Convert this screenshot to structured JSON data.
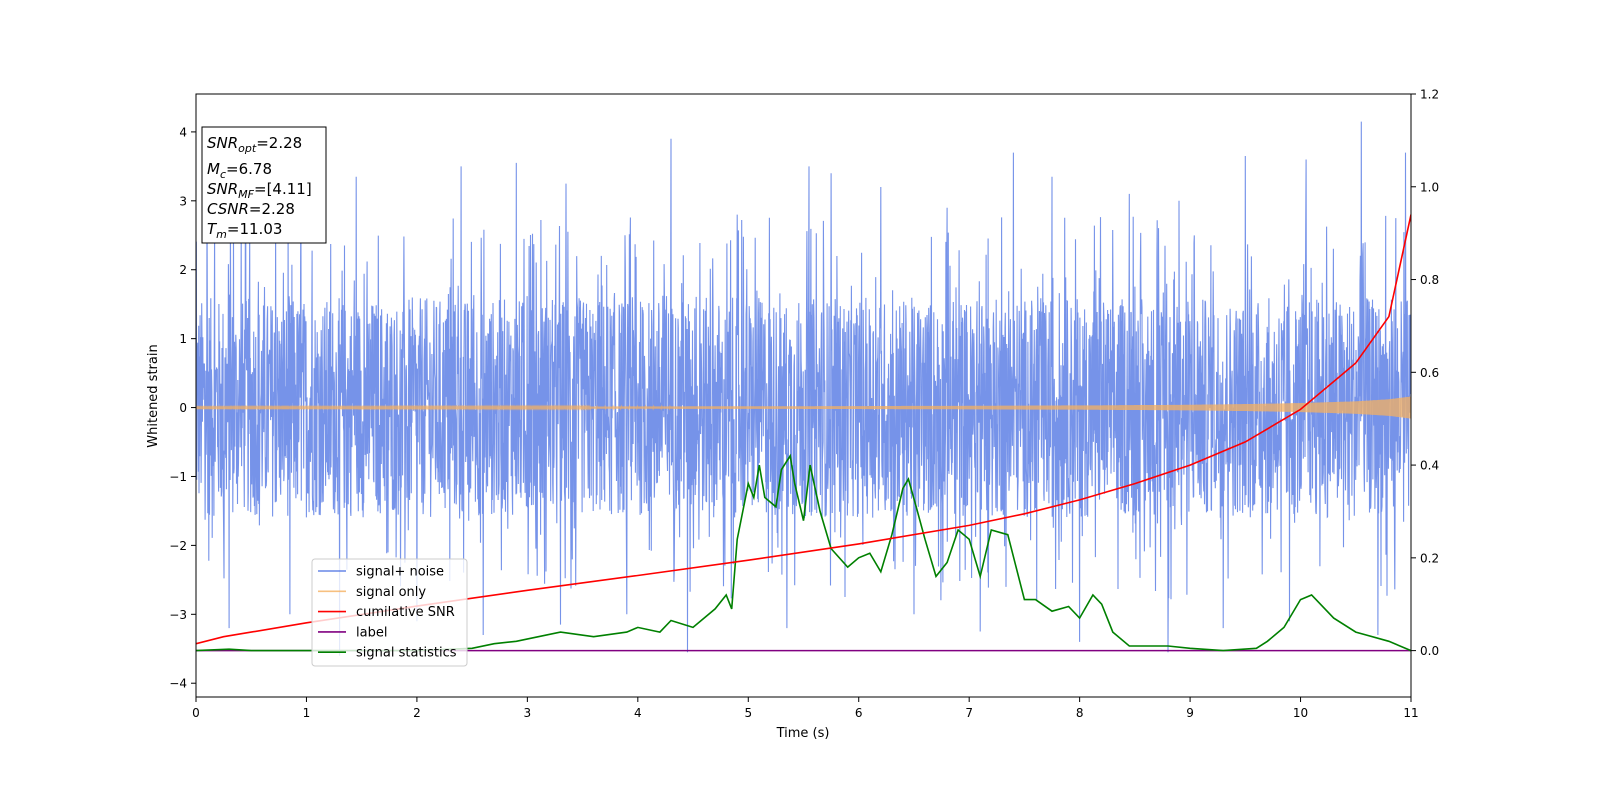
{
  "chart_data": {
    "type": "line",
    "xlabel": "Time (s)",
    "ylabel": "Whitened strain",
    "xlim": [
      0,
      11
    ],
    "ylim_left": [
      -4.2,
      4.55
    ],
    "ylim_right": [
      -0.1,
      1.2
    ],
    "x_ticks": [
      "0",
      "1",
      "2",
      "3",
      "4",
      "5",
      "6",
      "7",
      "8",
      "9",
      "10",
      "11"
    ],
    "y_left_ticks": [
      "4",
      "3",
      "2",
      "1",
      "0",
      "−1",
      "−2",
      "−3",
      "−4"
    ],
    "y_right_ticks": [
      "1.2",
      "1.0",
      "0.8",
      "0.6",
      "0.4",
      "0.2",
      "0.0"
    ],
    "annotation": {
      "snr_opt": {
        "name": "SNR",
        "sub": "opt",
        "value": "=2.28"
      },
      "mc": {
        "name": "M",
        "sub": "c",
        "value": "=6.78"
      },
      "snr_mf": {
        "name": "SNR",
        "sub": "MF",
        "value": "=[4.11]"
      },
      "csnr": {
        "name": "CSNR",
        "value": "=2.28"
      },
      "tm": {
        "name": "T",
        "sub": "m",
        "value": "=11.03"
      }
    },
    "legend_position": "lower-left",
    "series": [
      {
        "name": "signal+ noise",
        "axis": "left",
        "color": "#4169e1",
        "style": "noise band",
        "envelope_lower_x": [
          0,
          1,
          2,
          3,
          4,
          5,
          6,
          7,
          8,
          9,
          10,
          11
        ],
        "envelope_lower": [
          -1.6,
          -1.6,
          -1.6,
          -1.6,
          -1.6,
          -1.6,
          -1.6,
          -1.6,
          -1.6,
          -1.6,
          -1.6,
          -1.6
        ],
        "envelope_upper": [
          1.6,
          1.6,
          1.6,
          1.6,
          1.6,
          1.6,
          1.6,
          1.6,
          1.6,
          1.6,
          1.6,
          1.6
        ],
        "spikes_x": [
          0.1,
          0.45,
          0.95,
          1.45,
          2.4,
          2.9,
          3.35,
          4.3,
          4.9,
          5.55,
          5.75,
          6.2,
          6.8,
          7.4,
          7.75,
          8.45,
          8.9,
          9.5,
          10.05,
          10.55,
          10.95,
          0.3,
          0.85,
          1.3,
          2.0,
          2.6,
          3.3,
          3.9,
          4.45,
          5.35,
          6.5,
          7.1,
          8.0,
          8.8,
          9.3,
          9.9,
          10.7
        ],
        "spikes_y": [
          3.3,
          3.4,
          3.2,
          3.35,
          3.5,
          3.55,
          3.25,
          3.9,
          2.8,
          3.5,
          3.4,
          3.2,
          2.9,
          3.7,
          3.35,
          3.1,
          3.0,
          3.65,
          3.6,
          4.15,
          3.7,
          -3.2,
          -3.0,
          -3.6,
          -3.1,
          -3.3,
          -3.15,
          -3.0,
          -3.55,
          -3.2,
          -3.0,
          -3.25,
          -3.4,
          -3.55,
          -3.2,
          -3.1,
          -3.3
        ]
      },
      {
        "name": "signal only",
        "axis": "left",
        "color": "#f5b060",
        "style": "chirp",
        "x": [
          0,
          2,
          4,
          6,
          8,
          9,
          9.5,
          10,
          10.5,
          10.8,
          11
        ],
        "amplitude": [
          0.01,
          0.012,
          0.015,
          0.02,
          0.03,
          0.04,
          0.05,
          0.065,
          0.09,
          0.12,
          0.16
        ]
      },
      {
        "name": "cumilative SNR",
        "axis": "right",
        "color": "#ff0000",
        "x": [
          0,
          0.25,
          0.5,
          1,
          2,
          3,
          4,
          5,
          6,
          7,
          7.5,
          8,
          8.5,
          9,
          9.5,
          10,
          10.5,
          10.8,
          11
        ],
        "y": [
          0.015,
          0.03,
          0.04,
          0.06,
          0.096,
          0.13,
          0.162,
          0.195,
          0.23,
          0.27,
          0.295,
          0.325,
          0.36,
          0.4,
          0.45,
          0.52,
          0.62,
          0.72,
          0.94
        ]
      },
      {
        "name": "label",
        "axis": "right",
        "color": "#800080",
        "x": [
          0,
          11
        ],
        "y": [
          0,
          0
        ]
      },
      {
        "name": "signal statistics",
        "axis": "right",
        "color": "#008000",
        "x": [
          0,
          0.3,
          0.5,
          1.0,
          1.5,
          2.0,
          2.5,
          2.7,
          2.9,
          3.1,
          3.3,
          3.6,
          3.9,
          4.0,
          4.2,
          4.3,
          4.5,
          4.7,
          4.8,
          4.85,
          4.9,
          5.0,
          5.05,
          5.1,
          5.15,
          5.25,
          5.3,
          5.38,
          5.42,
          5.5,
          5.56,
          5.65,
          5.75,
          5.9,
          6.0,
          6.1,
          6.2,
          6.3,
          6.4,
          6.45,
          6.52,
          6.6,
          6.7,
          6.8,
          6.9,
          7.0,
          7.1,
          7.2,
          7.35,
          7.5,
          7.6,
          7.75,
          7.9,
          8.0,
          8.12,
          8.2,
          8.3,
          8.45,
          8.8,
          9.0,
          9.3,
          9.6,
          9.7,
          9.85,
          10.0,
          10.1,
          10.3,
          10.5,
          10.8,
          11.0
        ],
        "y": [
          0.0,
          0.003,
          0.0,
          0.0,
          0.0,
          0.0,
          0.005,
          0.015,
          0.02,
          0.03,
          0.04,
          0.03,
          0.04,
          0.05,
          0.04,
          0.065,
          0.05,
          0.09,
          0.12,
          0.09,
          0.24,
          0.36,
          0.33,
          0.4,
          0.33,
          0.31,
          0.39,
          0.42,
          0.36,
          0.28,
          0.4,
          0.3,
          0.22,
          0.18,
          0.2,
          0.21,
          0.17,
          0.25,
          0.35,
          0.37,
          0.31,
          0.24,
          0.16,
          0.19,
          0.26,
          0.24,
          0.16,
          0.26,
          0.25,
          0.11,
          0.11,
          0.085,
          0.095,
          0.07,
          0.12,
          0.1,
          0.04,
          0.01,
          0.01,
          0.005,
          0.0,
          0.005,
          0.02,
          0.05,
          0.11,
          0.12,
          0.07,
          0.04,
          0.02,
          0.0
        ]
      }
    ]
  }
}
